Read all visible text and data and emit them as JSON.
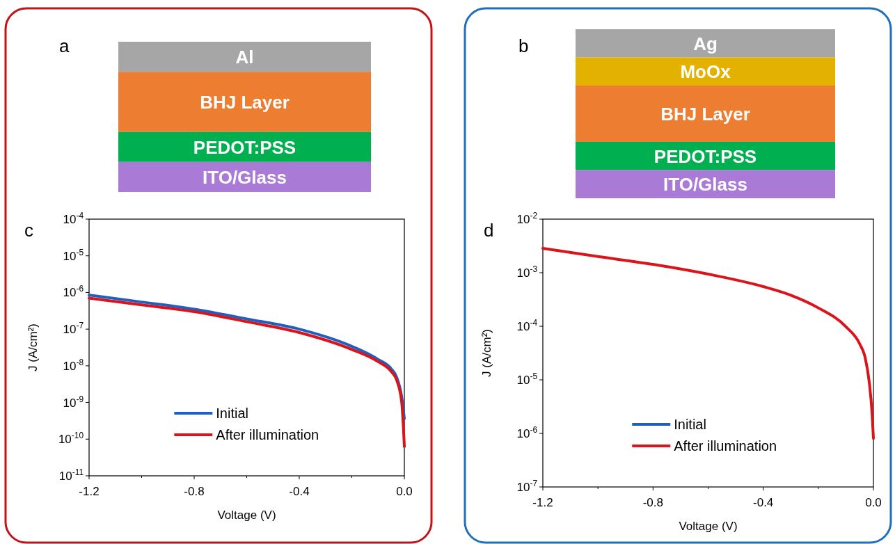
{
  "chart_data": [
    {
      "type": "line",
      "xlabel": "Voltage (V)",
      "ylabel": "J (A/cm²)",
      "log": "y",
      "legend": "bottom",
      "annotations": [
        "a",
        "Al",
        "BHJ Layer",
        "PEDOT:PSS",
        "ITO/Glass",
        "c"
      ],
      "x": [
        -1.2,
        -1.0,
        -0.8,
        -0.6,
        -0.4,
        -0.2,
        -0.1,
        -0.05,
        -0.03,
        -0.01,
        0.0
      ],
      "series": [
        {
          "name": "Initial",
          "color": "#1f5fbf",
          "values": [
            8.5e-07,
            5.5e-07,
            3.5e-07,
            1.9e-07,
            1e-07,
            3.4e-08,
            1.5e-08,
            8.3e-09,
            5e-09,
            1.4e-09,
            3.6e-10
          ]
        },
        {
          "name": "After illumination",
          "color": "#d9141b",
          "values": [
            7e-07,
            4.6e-07,
            3e-07,
            1.6e-07,
            8.1e-08,
            2.8e-08,
            1.3e-08,
            7e-09,
            4.2e-09,
            1e-09,
            6.3e-11
          ]
        }
      ],
      "xlim": [
        -1.2,
        0.0
      ],
      "xticks": [
        -1.2,
        {
          "value": -1.0,
          "label": null
        },
        -0.8,
        {
          "value": -0.6,
          "label": null
        },
        -0.4,
        {
          "value": -0.2,
          "label": null
        },
        {
          "value": 0.0,
          "label": "0.0"
        }
      ],
      "ylim": [
        1e-11,
        0.0001
      ],
      "yticks": [
        {
          "value": 1e-11,
          "label": "10$^{-11}$"
        },
        {
          "value": 1e-10,
          "label": "10$^{-10}$"
        },
        {
          "value": 1e-09,
          "label": "10$^{-9}$"
        },
        {
          "value": 1e-08,
          "label": "10$^{-8}$"
        },
        {
          "value": 1e-07,
          "label": "10$^{-7}$"
        },
        {
          "value": 1e-06,
          "label": "10$^{-6}$"
        },
        {
          "value": 1e-05,
          "label": "10$^{-5}$"
        },
        {
          "value": 0.0001,
          "label": "10$^{-4}$"
        }
      ]
    },
    {
      "type": "line",
      "xlabel": "Voltage (V)",
      "ylabel": "J (A/cm²)",
      "log": "y",
      "legend": "bottom",
      "annotations": [
        "b",
        "Ag",
        "MoOx",
        "BHJ Layer",
        "PEDOT:PSS",
        "ITO/Glass",
        "d"
      ],
      "x": [
        -1.2,
        -1.0,
        -0.8,
        -0.6,
        -0.4,
        -0.3,
        -0.2,
        -0.1,
        -0.05,
        -0.03,
        -0.015,
        -0.005,
        0.0
      ],
      "series": [
        {
          "name": "Initial",
          "color": "#1f5fbf",
          "values": [
            null,
            null,
            null,
            null,
            null,
            null,
            null,
            null,
            null,
            null,
            null,
            null,
            null
          ]
        },
        {
          "name": "After illumination",
          "color": "#d9141b",
          "values": [
            0.00285,
            0.002,
            0.00143,
            0.00094,
            0.00055,
            0.00038,
            0.00022,
            9.8e-05,
            4.7e-05,
            2.6e-05,
            8.9e-06,
            2.4e-06,
            8.1e-07
          ]
        }
      ],
      "xlim": [
        -1.2,
        0.0
      ],
      "xticks": [
        -1.2,
        {
          "value": -1.0,
          "label": null
        },
        -0.8,
        {
          "value": -0.6,
          "label": null
        },
        -0.4,
        {
          "value": -0.2,
          "label": null
        },
        {
          "value": 0.0,
          "label": "0.0"
        }
      ],
      "ylim": [
        1e-07,
        0.01
      ],
      "yticks": [
        {
          "value": 1e-07,
          "label": "10$^{-7}$"
        },
        {
          "value": 1e-06,
          "label": "10$^{-6}$"
        },
        {
          "value": 1e-05,
          "label": "10$^{-5}$"
        },
        {
          "value": 0.0001,
          "label": "10$^{-4}$"
        },
        {
          "value": 0.001,
          "label": "10$^{-3}$"
        },
        {
          "value": 0.01,
          "label": "10$^{-2}$"
        }
      ]
    }
  ]
}
